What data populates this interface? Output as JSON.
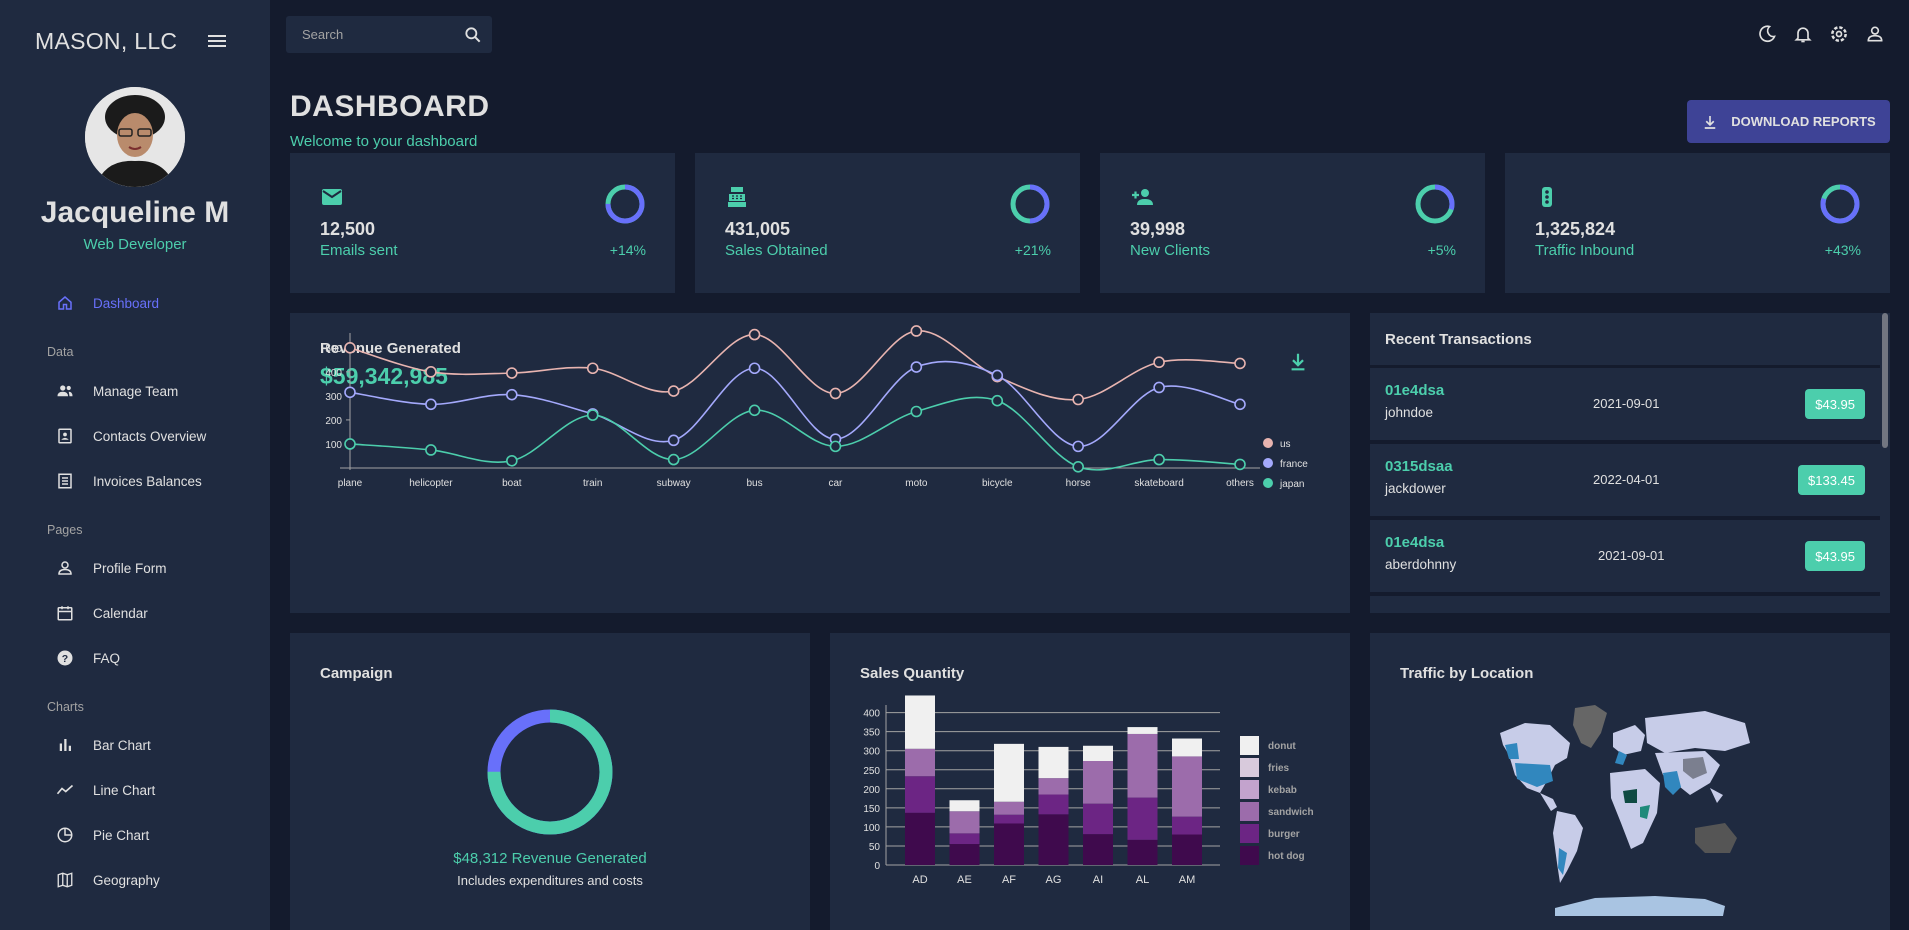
{
  "sidebar": {
    "brand": "MASON, LLC",
    "user_name": "Jacqueline M",
    "user_role": "Web Developer",
    "items": [
      {
        "label": "Dashboard",
        "icon": "home-icon"
      },
      {
        "label": "Manage Team",
        "icon": "people-icon"
      },
      {
        "label": "Contacts Overview",
        "icon": "contacts-icon"
      },
      {
        "label": "Invoices Balances",
        "icon": "receipt-icon"
      },
      {
        "label": "Profile Form",
        "icon": "person-icon"
      },
      {
        "label": "Calendar",
        "icon": "calendar-icon"
      },
      {
        "label": "FAQ",
        "icon": "help-icon"
      },
      {
        "label": "Bar Chart",
        "icon": "bar-chart-icon"
      },
      {
        "label": "Line Chart",
        "icon": "timeline-icon"
      },
      {
        "label": "Pie Chart",
        "icon": "pie-chart-icon"
      },
      {
        "label": "Geography",
        "icon": "map-icon"
      }
    ],
    "sections": [
      "Data",
      "Pages",
      "Charts"
    ]
  },
  "topbar": {
    "search_placeholder": "Search",
    "icons": [
      "dark-mode-icon",
      "notifications-icon",
      "settings-icon",
      "person-icon"
    ]
  },
  "header": {
    "title": "DASHBOARD",
    "subtitle": "Welcome to your dashboard",
    "download_label": "DOWNLOAD REPORTS"
  },
  "stats": [
    {
      "value": "12,500",
      "label": "Emails sent",
      "increase": "+14%",
      "progress": 0.75,
      "icon": "email-icon"
    },
    {
      "value": "431,005",
      "label": "Sales Obtained",
      "increase": "+21%",
      "progress": 0.5,
      "icon": "point-of-sale-icon"
    },
    {
      "value": "39,998",
      "label": "New Clients",
      "increase": "+5%",
      "progress": 0.3,
      "icon": "person-add-icon"
    },
    {
      "value": "1,325,824",
      "label": "Traffic Inbound",
      "increase": "+43%",
      "progress": 0.8,
      "icon": "traffic-icon"
    }
  ],
  "revenue": {
    "title": "Revenue Generated",
    "value": "$59,342,985"
  },
  "transactions": {
    "title": "Recent Transactions",
    "rows": [
      {
        "id": "01e4dsa",
        "user": "johndoe",
        "date": "2021-09-01",
        "cost": "$43.95"
      },
      {
        "id": "0315dsaa",
        "user": "jackdower",
        "date": "2022-04-01",
        "cost": "$133.45"
      },
      {
        "id": "01e4dsa",
        "user": "aberdohnny",
        "date": "2021-09-01",
        "cost": "$43.95"
      }
    ]
  },
  "campaign": {
    "title": "Campaign",
    "revenue_text": "$48,312 Revenue Generated",
    "note": "Includes expenditures and costs",
    "progress": 0.75
  },
  "sales": {
    "title": "Sales Quantity"
  },
  "geo": {
    "title": "Traffic by Location"
  },
  "colors": {
    "accent_green": "#4cceac",
    "accent_blue": "#6870fa",
    "panel": "#1f2a40",
    "background": "#141b2d",
    "button": "#3e4396"
  },
  "chart_data": [
    {
      "type": "line",
      "x": [
        "plane",
        "helicopter",
        "boat",
        "train",
        "subway",
        "bus",
        "car",
        "moto",
        "bicycle",
        "horse",
        "skateboard",
        "others"
      ],
      "series": [
        {
          "name": "us",
          "color": "#e8b4b0",
          "values": [
            500,
            400,
            395,
            415,
            320,
            555,
            310,
            570,
            380,
            285,
            440,
            435
          ]
        },
        {
          "name": "france",
          "color": "#a4a9fc",
          "values": [
            315,
            265,
            305,
            225,
            115,
            415,
            120,
            420,
            385,
            90,
            335,
            265
          ]
        },
        {
          "name": "japan",
          "color": "#4cceac",
          "values": [
            100,
            75,
            30,
            220,
            35,
            240,
            90,
            235,
            280,
            5,
            35,
            15
          ]
        }
      ],
      "yticks": [
        100,
        200,
        300,
        400,
        500
      ],
      "legend": "right"
    },
    {
      "type": "bar",
      "stacked": true,
      "categories": [
        "AD",
        "AE",
        "AF",
        "AG",
        "AI",
        "AL",
        "AM"
      ],
      "series": [
        {
          "name": "hot dog",
          "color": "#3f0a4d",
          "values": [
            137,
            55,
            109,
            133,
            81,
            66,
            80
          ]
        },
        {
          "name": "burger",
          "color": "#6c2584",
          "values": [
            96,
            28,
            23,
            52,
            80,
            111,
            47
          ]
        },
        {
          "name": "sandwich",
          "color": "#9c6cab",
          "values": [
            72,
            58,
            34,
            43,
            112,
            167,
            158
          ]
        },
        {
          "name": "kebab",
          "color": "#c3a3cd",
          "values": [
            0,
            0,
            0,
            0,
            0,
            0,
            0
          ]
        },
        {
          "name": "fries",
          "color": "#d8cadc",
          "values": [
            0,
            0,
            0,
            0,
            0,
            0,
            0
          ]
        },
        {
          "name": "donut",
          "color": "#f0f0f0",
          "values": [
            140,
            29,
            152,
            82,
            40,
            18,
            47
          ]
        }
      ],
      "yticks": [
        0,
        50,
        100,
        150,
        200,
        250,
        300,
        350,
        400
      ],
      "legend": "right"
    }
  ]
}
